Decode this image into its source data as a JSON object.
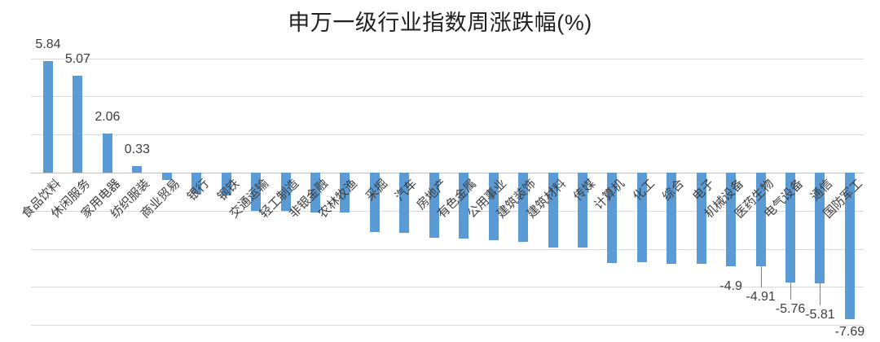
{
  "chart_data": {
    "type": "bar",
    "title": "申万一级行业指数周涨跌幅(%)",
    "categories": [
      "食品饮料",
      "休闲服务",
      "家用电器",
      "纺织服装",
      "商业贸易",
      "银行",
      "钢铁",
      "交通运输",
      "轻工制造",
      "非银金融",
      "农林牧渔",
      "采掘",
      "汽车",
      "房地产",
      "有色金属",
      "公用事业",
      "建筑装饰",
      "建筑材料",
      "传媒",
      "计算机",
      "化工",
      "综合",
      "电子",
      "机械设备",
      "医药生物",
      "电气设备",
      "通信",
      "国防军工"
    ],
    "values": [
      5.84,
      5.07,
      2.06,
      0.33,
      -0.4,
      -1.1,
      -1.2,
      -2.0,
      -2.0,
      -2.1,
      -2.1,
      -3.1,
      -3.15,
      -3.4,
      -3.45,
      -3.55,
      -3.65,
      -3.95,
      -3.95,
      -4.75,
      -4.7,
      -4.8,
      -4.8,
      -4.9,
      -4.91,
      -5.76,
      -5.81,
      -7.69
    ],
    "data_labels": [
      "5.84",
      "5.07",
      "2.06",
      "0.33",
      null,
      null,
      null,
      null,
      null,
      null,
      null,
      null,
      null,
      null,
      null,
      null,
      null,
      null,
      null,
      null,
      null,
      null,
      null,
      "-4.9",
      "-4.91",
      "-5.76",
      "-5.81",
      "-7.69"
    ],
    "xlabel": "",
    "ylabel": "",
    "ylim": [
      -8,
      6
    ],
    "gridline_step": 2,
    "grid": true,
    "legend": false,
    "bar_color": "#5b9bd5",
    "gridline_color": "#d9d9d9",
    "zero_line_color": "#bfbfbf",
    "leader_line_color": "#808080",
    "title_color": "#212121",
    "label_color": "#3d3d3d"
  }
}
